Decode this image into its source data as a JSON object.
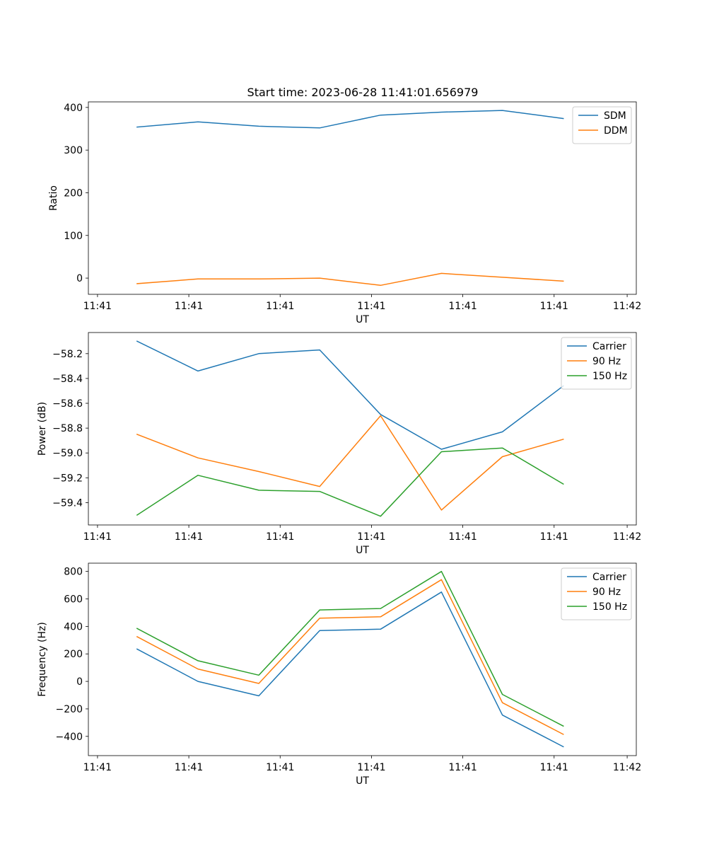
{
  "figure": {
    "title": "Start time: 2023-06-28 11:41:01.656979"
  },
  "chart_data": [
    {
      "type": "line",
      "title": "Start time: 2023-06-28 11:41:01.656979",
      "xlabel": "UT",
      "ylabel": "Ratio",
      "x_tick_labels": [
        "11:41",
        "11:41",
        "11:41",
        "11:41",
        "11:41",
        "11:41",
        "11:42"
      ],
      "y_ticks": [
        0,
        100,
        200,
        300,
        400
      ],
      "y_tick_labels": [
        "0",
        "100",
        "200",
        "300",
        "400"
      ],
      "ylim": [
        -38,
        413
      ],
      "x_points": [
        1,
        2,
        3,
        4,
        5,
        6,
        7,
        8
      ],
      "xlim": [
        0.2,
        9.2
      ],
      "x_tick_positions": [
        0.35,
        1.85,
        3.35,
        4.85,
        6.35,
        7.85,
        9.05
      ],
      "legend_position": "upper right",
      "grid": false,
      "series": [
        {
          "name": "SDM",
          "color": "#1f77b4",
          "values": [
            354,
            366,
            356,
            352,
            382,
            389,
            393,
            374
          ]
        },
        {
          "name": "DDM",
          "color": "#ff7f0e",
          "values": [
            -13,
            -2,
            -2,
            0,
            -17,
            11,
            2,
            -7
          ]
        }
      ]
    },
    {
      "type": "line",
      "title": "",
      "xlabel": "UT",
      "ylabel": "Power (dB)",
      "x_tick_labels": [
        "11:41",
        "11:41",
        "11:41",
        "11:41",
        "11:41",
        "11:41",
        "11:42"
      ],
      "y_ticks": [
        -59.4,
        -59.2,
        -59.0,
        -58.8,
        -58.6,
        -58.4,
        -58.2
      ],
      "y_tick_labels": [
        "−59.4",
        "−59.2",
        "−59.0",
        "−58.8",
        "−58.6",
        "−58.4",
        "−58.2"
      ],
      "ylim": [
        -59.58,
        -58.03
      ],
      "x_points": [
        1,
        2,
        3,
        4,
        5,
        6,
        7,
        8
      ],
      "xlim": [
        0.2,
        9.2
      ],
      "x_tick_positions": [
        0.35,
        1.85,
        3.35,
        4.85,
        6.35,
        7.85,
        9.05
      ],
      "legend_position": "upper right",
      "grid": false,
      "series": [
        {
          "name": "Carrier",
          "color": "#1f77b4",
          "values": [
            -58.1,
            -58.34,
            -58.2,
            -58.17,
            -58.69,
            -58.97,
            -58.83,
            -58.46
          ]
        },
        {
          "name": "90 Hz",
          "color": "#ff7f0e",
          "values": [
            -58.85,
            -59.04,
            -59.15,
            -59.27,
            -58.7,
            -59.46,
            -59.03,
            -58.89
          ]
        },
        {
          "name": "150 Hz",
          "color": "#2ca02c",
          "values": [
            -59.5,
            -59.18,
            -59.3,
            -59.31,
            -59.51,
            -58.99,
            -58.96,
            -59.25
          ]
        }
      ]
    },
    {
      "type": "line",
      "title": "",
      "xlabel": "UT",
      "ylabel": "Frequency (Hz)",
      "x_tick_labels": [
        "11:41",
        "11:41",
        "11:41",
        "11:41",
        "11:41",
        "11:41",
        "11:42"
      ],
      "y_ticks": [
        -400,
        -200,
        0,
        200,
        400,
        600,
        800
      ],
      "y_tick_labels": [
        "−400",
        "−200",
        "0",
        "200",
        "400",
        "600",
        "800"
      ],
      "ylim": [
        -540,
        860
      ],
      "x_points": [
        1,
        2,
        3,
        4,
        5,
        6,
        7,
        8
      ],
      "xlim": [
        0.2,
        9.2
      ],
      "x_tick_positions": [
        0.35,
        1.85,
        3.35,
        4.85,
        6.35,
        7.85,
        9.05
      ],
      "legend_position": "upper right",
      "grid": false,
      "series": [
        {
          "name": "Carrier",
          "color": "#1f77b4",
          "values": [
            235,
            0,
            -105,
            370,
            380,
            650,
            -245,
            -475
          ]
        },
        {
          "name": "90 Hz",
          "color": "#ff7f0e",
          "values": [
            325,
            90,
            -15,
            460,
            470,
            740,
            -155,
            -385
          ]
        },
        {
          "name": "150 Hz",
          "color": "#2ca02c",
          "values": [
            385,
            150,
            45,
            520,
            530,
            800,
            -95,
            -325
          ]
        }
      ]
    }
  ]
}
